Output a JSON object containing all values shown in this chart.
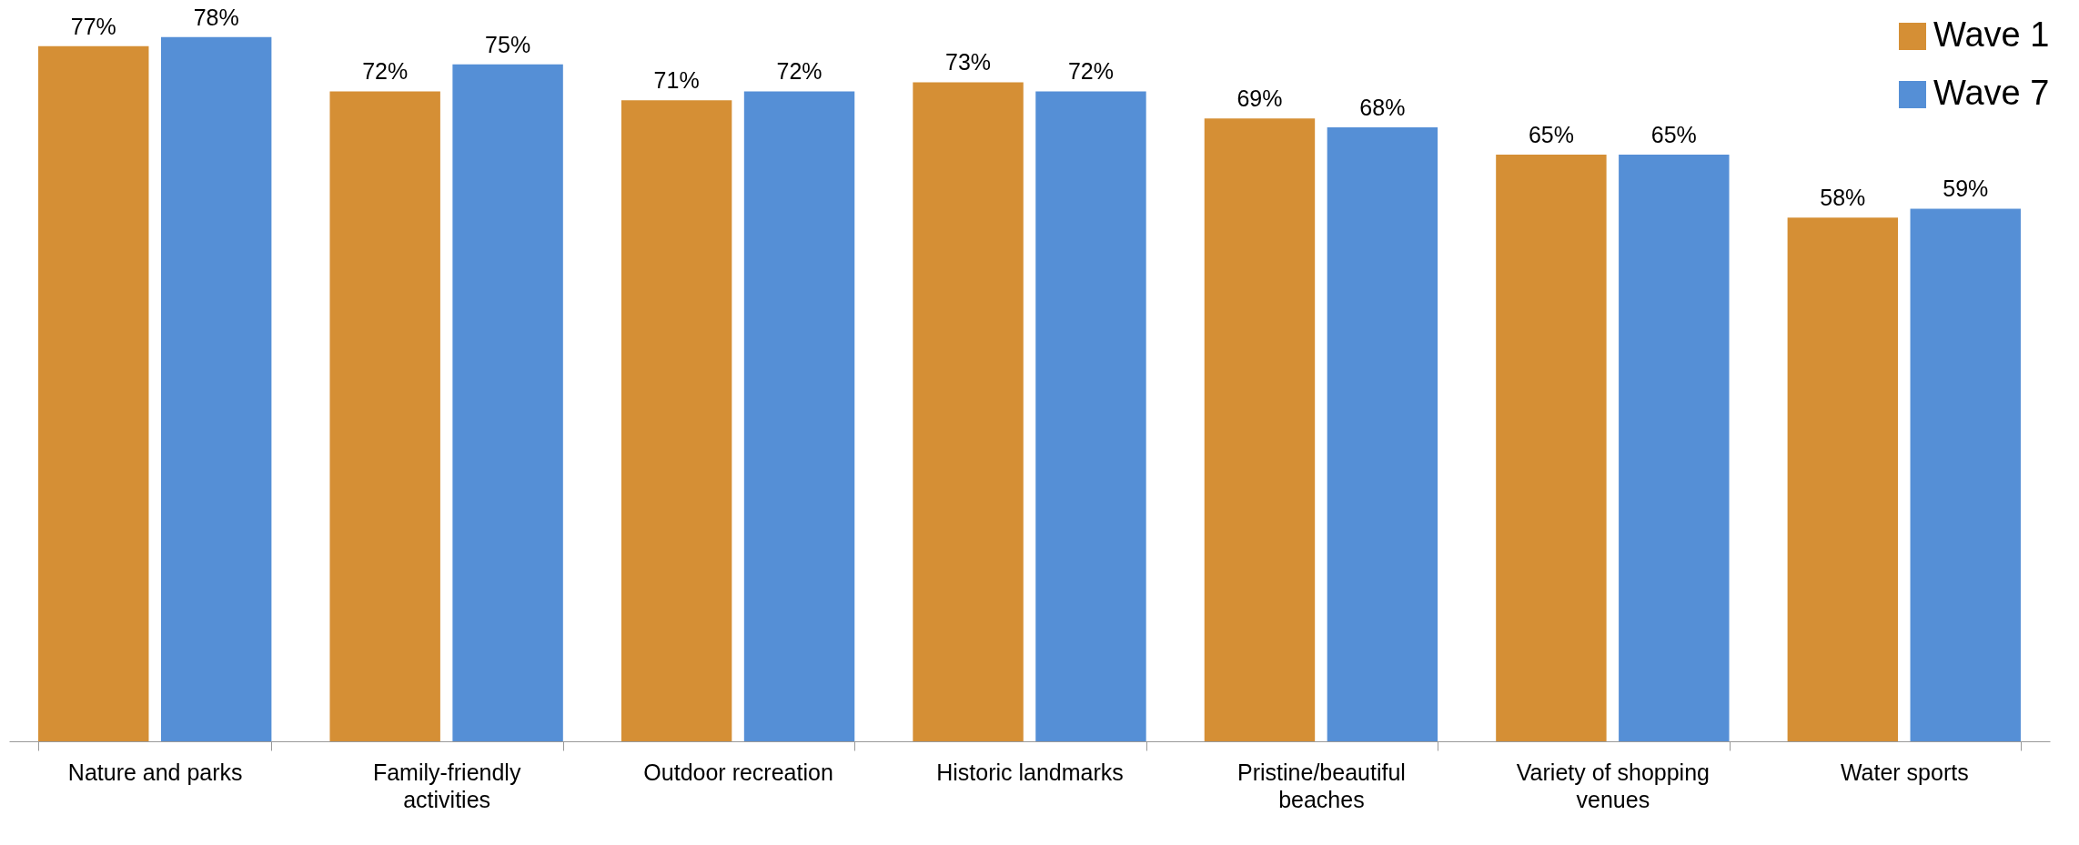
{
  "chart_data": {
    "type": "bar",
    "categories": [
      "Nature and parks",
      "Family-friendly activities",
      "Outdoor recreation",
      "Historic landmarks",
      "Pristine/beautiful beaches",
      "Variety of shopping venues",
      "Water sports"
    ],
    "series": [
      {
        "name": "Wave 1",
        "color": "#d58f35",
        "values": [
          77,
          72,
          71,
          73,
          69,
          65,
          58
        ],
        "value_labels": [
          "77%",
          "72%",
          "71%",
          "73%",
          "69%",
          "65%",
          "58%"
        ]
      },
      {
        "name": "Wave 7",
        "color": "#558fd6",
        "values": [
          78,
          75,
          72,
          72,
          68,
          65,
          59
        ],
        "value_labels": [
          "78%",
          "75%",
          "72%",
          "72%",
          "68%",
          "65%",
          "59%"
        ]
      }
    ],
    "legend": "top right",
    "grid": false
  }
}
